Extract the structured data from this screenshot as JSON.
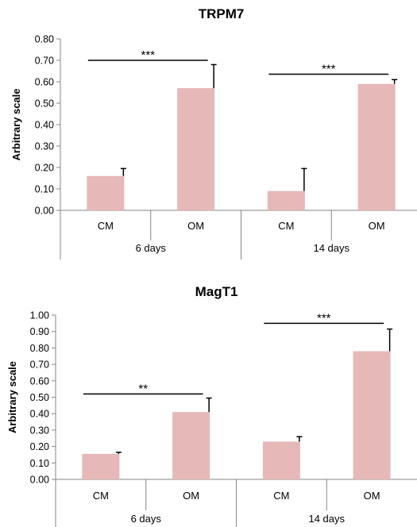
{
  "colors": {
    "bar": "#e6b8b7",
    "axis": "#868686",
    "text": "#000000"
  },
  "chart_data": [
    {
      "type": "bar",
      "title": "TRPM7",
      "ylabel": "Arbitrary scale",
      "xlabel": "",
      "ylim": [
        0,
        0.8
      ],
      "yticks": [
        "0.00",
        "0.10",
        "0.20",
        "0.30",
        "0.40",
        "0.50",
        "0.60",
        "0.70",
        "0.80"
      ],
      "groups": [
        "6 days",
        "14 days"
      ],
      "categories": [
        "CM",
        "OM",
        "CM",
        "OM"
      ],
      "values": [
        0.16,
        0.57,
        0.09,
        0.59
      ],
      "errors": [
        0.035,
        0.11,
        0.105,
        0.02
      ],
      "grid": false,
      "legend": "none",
      "significance": [
        {
          "label": "***",
          "from": 0,
          "to": 1,
          "y": 0.7
        },
        {
          "label": "***",
          "from": 2,
          "to": 3,
          "y": 0.635
        }
      ]
    },
    {
      "type": "bar",
      "title": "MagT1",
      "ylabel": "Arbitrary scale",
      "xlabel": "",
      "ylim": [
        0,
        1.0
      ],
      "yticks": [
        "0.00",
        "0.10",
        "0.20",
        "0.30",
        "0.40",
        "0.50",
        "0.60",
        "0.70",
        "0.80",
        "0.90",
        "1.00"
      ],
      "groups": [
        "6 days",
        "14 days"
      ],
      "categories": [
        "CM",
        "OM",
        "CM",
        "OM"
      ],
      "values": [
        0.155,
        0.41,
        0.23,
        0.78
      ],
      "errors": [
        0.01,
        0.085,
        0.03,
        0.135
      ],
      "grid": false,
      "legend": "none",
      "significance": [
        {
          "label": "**",
          "from": 0,
          "to": 1,
          "y": 0.52
        },
        {
          "label": "***",
          "from": 2,
          "to": 3,
          "y": 0.95
        }
      ]
    }
  ]
}
